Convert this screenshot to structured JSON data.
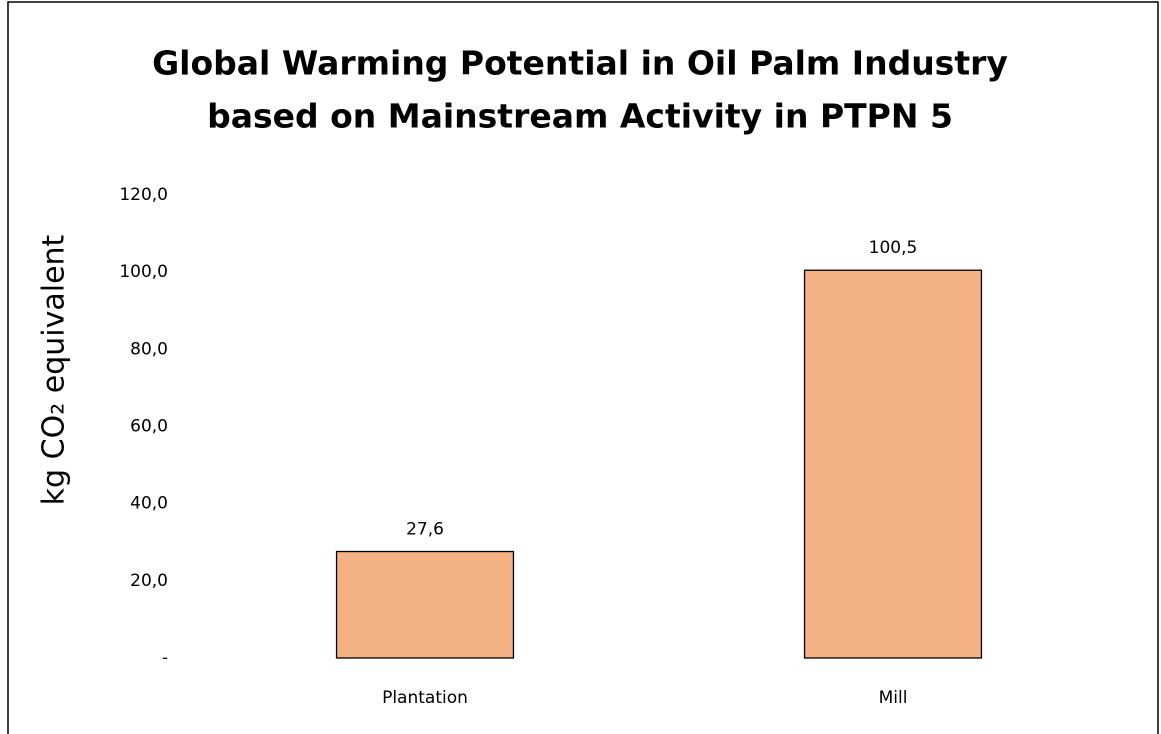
{
  "chart_data": {
    "type": "bar",
    "title": [
      "Global Warming Potential in Oil Palm Industry",
      "based on Mainstream Activity in PTPN 5"
    ],
    "y_label": "kg CO₂ equivalent",
    "categories": [
      "Plantation",
      "Mill"
    ],
    "values": [
      27.6,
      100.5
    ],
    "value_labels": [
      "27,6",
      "100,5"
    ],
    "color": "#f4b183",
    "ylim": [
      0,
      120
    ],
    "yticks": [
      {
        "value": 0,
        "label": "-"
      },
      {
        "value": 20,
        "label": "20,0"
      },
      {
        "value": 40,
        "label": "40,0"
      },
      {
        "value": 60,
        "label": "60,0"
      },
      {
        "value": 80,
        "label": "80,0"
      },
      {
        "value": 100,
        "label": "100,0"
      },
      {
        "value": 120,
        "label": "120,0"
      }
    ],
    "grid": false
  }
}
